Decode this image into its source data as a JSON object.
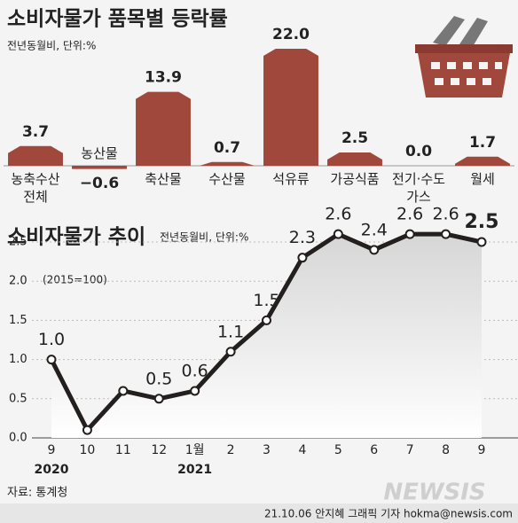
{
  "chart_data": [
    {
      "type": "bar",
      "title": "소비자물가 품목별 등락률",
      "subtitle": "전년동월비, 단위:%",
      "categories": [
        "농축수산 전체",
        "농산물",
        "축산물",
        "수산물",
        "석유류",
        "가공식품",
        "전기·수도 가스",
        "월세"
      ],
      "values": [
        3.7,
        -0.6,
        13.9,
        0.7,
        22.0,
        2.5,
        0.0,
        1.7
      ],
      "value_labels": [
        "3.7",
        "−0.6",
        "13.9",
        "0.7",
        "22.0",
        "2.5",
        "0.0",
        "1.7"
      ],
      "color": "#a0483c"
    },
    {
      "type": "line",
      "title": "소비자물가 추이",
      "subtitle": "전년동월비, 단위:%",
      "annotation": "(2015=100)",
      "categories": [
        "9",
        "10",
        "11",
        "12",
        "1월",
        "2",
        "3",
        "4",
        "5",
        "6",
        "7",
        "8",
        "9"
      ],
      "year_labels": [
        "2020",
        null,
        null,
        null,
        "2021",
        null,
        null,
        null,
        null,
        null,
        null,
        null,
        null
      ],
      "values": [
        1.0,
        0.1,
        0.6,
        0.5,
        0.6,
        1.1,
        1.5,
        2.3,
        2.6,
        2.4,
        2.6,
        2.6,
        2.5
      ],
      "value_labels": [
        "1.0",
        null,
        null,
        "0.5",
        "0.6",
        "1.1",
        "1.5",
        "2.3",
        "2.6",
        "2.4",
        "2.6",
        "2.6",
        "2.5"
      ],
      "color": "#231f1e",
      "ylim": [
        0,
        2.5
      ],
      "yticks": [
        {
          "value": 0,
          "label": "0.0"
        },
        {
          "value": 0.5,
          "label": "0.5"
        },
        {
          "value": 1,
          "label": "1.0"
        },
        {
          "value": 1.5,
          "label": "1.5"
        },
        {
          "value": 2,
          "label": "2.0"
        },
        {
          "value": 2.5,
          "label": "2.5"
        }
      ],
      "grid": true
    }
  ],
  "footer": {
    "source": "자료: 통계청",
    "credit": "21.10.06 안지혜 그래픽 기자 hokma@newsis.com",
    "watermark": "NEWSIS"
  }
}
